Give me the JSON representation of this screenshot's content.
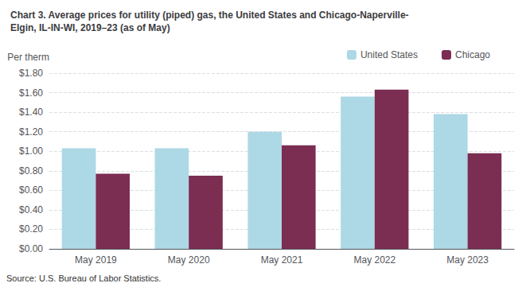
{
  "chart_data": {
    "type": "bar",
    "title": "Chart 3. Average prices for utility (piped) gas, the United States and Chicago-Naperville-\nElgin, IL-IN-WI, 2019–23 (as of May)",
    "ylabel": "Per therm",
    "source": "Source: U.S. Bureau of Labor Statistics.",
    "categories": [
      "May 2019",
      "May 2020",
      "May 2021",
      "May 2022",
      "May 2023"
    ],
    "series": [
      {
        "name": "United States",
        "color": "#add8e6",
        "values": [
          1.03,
          1.03,
          1.2,
          1.56,
          1.38
        ]
      },
      {
        "name": "Chicago",
        "color": "#7b2d52",
        "values": [
          0.77,
          0.75,
          1.06,
          1.63,
          0.98
        ]
      }
    ],
    "ylim": [
      0,
      1.8
    ],
    "yticks": [
      {
        "value": 0.0,
        "label": "$0.00"
      },
      {
        "value": 0.2,
        "label": "$0.20"
      },
      {
        "value": 0.4,
        "label": "$0.40"
      },
      {
        "value": 0.6,
        "label": "$0.60"
      },
      {
        "value": 0.8,
        "label": "$0.80"
      },
      {
        "value": 1.0,
        "label": "$1.00"
      },
      {
        "value": 1.2,
        "label": "$1.20"
      },
      {
        "value": 1.4,
        "label": "$1.40"
      },
      {
        "value": 1.6,
        "label": "$1.60"
      },
      {
        "value": 1.8,
        "label": "$1.80"
      }
    ],
    "grid": true,
    "legend": "top"
  }
}
